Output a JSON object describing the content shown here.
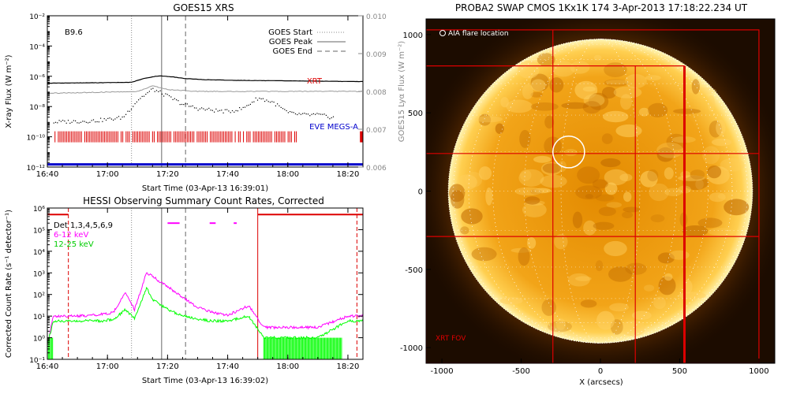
{
  "chart_data": [
    {
      "type": "line",
      "title": "GOES15 XRS",
      "xlabel": "Start Time (03-Apr-13 16:39:01)",
      "ylabel": "X-ray Flux (W m⁻²)",
      "ylabel_right": "GOES15 Lyα Flux (W m⁻²)",
      "x_ticks": [
        "16:40",
        "17:00",
        "17:20",
        "17:40",
        "18:00",
        "18:20"
      ],
      "x_range": [
        "16:40",
        "18:25"
      ],
      "y_scale": "log",
      "y_range": [
        1e-12,
        0.01
      ],
      "y_ticks": [
        "10⁻¹²",
        "10⁻¹⁰",
        "10⁻⁸",
        "10⁻⁶",
        "10⁻⁴",
        "10⁻²"
      ],
      "y_right_range": [
        0.006,
        0.01
      ],
      "y_right_ticks": [
        "0.006",
        "0.007",
        "0.008",
        "0.009",
        "0.010"
      ],
      "class_label": "B9.6",
      "legend": [
        "GOES Start",
        "GOES Peak",
        "GOES End"
      ],
      "annotations": [
        "XRT",
        "EVE MEGS-A"
      ],
      "goes_start": "17:08",
      "goes_peak": "17:18",
      "goes_end": "17:26",
      "series": [
        {
          "key": "long",
          "x": [
            "16:40",
            "17:00",
            "17:08",
            "17:12",
            "17:16",
            "17:18",
            "17:22",
            "17:26",
            "17:32",
            "17:40",
            "17:50",
            "18:00",
            "18:10",
            "18:20",
            "18:25"
          ],
          "values": [
            3.5e-07,
            3.8e-07,
            4e-07,
            7e-07,
            1e-06,
            1.05e-06,
            9e-07,
            7e-07,
            6e-07,
            5.5e-07,
            5.2e-07,
            5e-07,
            4.8e-07,
            4.5e-07,
            4.5e-07
          ]
        },
        {
          "key": "lya",
          "x": [
            "16:40",
            "17:10",
            "17:15",
            "17:20",
            "17:30",
            "18:00",
            "18:25"
          ],
          "values": [
            0.00795,
            0.008,
            0.00815,
            0.00805,
            0.008,
            0.008,
            0.008
          ]
        },
        {
          "key": "short",
          "x": [
            "16:42",
            "16:48",
            "16:55",
            "17:00",
            "17:05",
            "17:10",
            "17:15",
            "17:20",
            "17:25",
            "17:30",
            "17:35",
            "17:40",
            "17:45",
            "17:50",
            "17:55",
            "18:00",
            "18:05",
            "18:10",
            "18:15"
          ],
          "values": [
            1e-09,
            1.1e-09,
            1.2e-09,
            1.5e-09,
            2e-09,
            3e-08,
            1.5e-07,
            5e-08,
            1.5e-08,
            8e-09,
            6e-09,
            5e-09,
            8e-09,
            4e-08,
            2e-08,
            4e-09,
            3e-09,
            3e-09,
            2e-09
          ]
        }
      ],
      "xrt_bar": {
        "start": "16:42",
        "end": "18:03",
        "level": 1e-10
      },
      "eve_level": 1.5e-12
    },
    {
      "type": "line",
      "title": "HESSI Observing Summary Count Rates, Corrected",
      "xlabel": "Start Time (03-Apr-13 16:39:02)",
      "ylabel": "Corrected Count Rate (s⁻¹ detector⁻¹)",
      "x_ticks": [
        "16:40",
        "17:00",
        "17:20",
        "17:40",
        "18:00",
        "18:20"
      ],
      "x_range": [
        "16:40",
        "18:25"
      ],
      "y_scale": "log",
      "y_range": [
        0.1,
        1000000.0
      ],
      "y_ticks": [
        "10⁻¹",
        "10⁰",
        "10¹",
        "10²",
        "10³",
        "10⁴",
        "10⁵",
        "10⁶"
      ],
      "legend_title": "Det 1,3,4,5,6,9",
      "series": [
        {
          "name": "6-12 keV",
          "color": "#ff00ff",
          "x": [
            "16:40",
            "16:42",
            "16:50",
            "16:58",
            "17:02",
            "17:06",
            "17:09",
            "17:13",
            "17:15",
            "17:18",
            "17:22",
            "17:26",
            "17:30",
            "17:35",
            "17:40",
            "17:47",
            "17:52",
            "17:56",
            "18:00",
            "18:10",
            "18:20",
            "18:25"
          ],
          "values": [
            0.5,
            10,
            10,
            12,
            15,
            120,
            20,
            1000,
            700,
            350,
            150,
            60,
            25,
            15,
            11,
            30,
            3,
            3,
            3,
            3,
            10,
            10
          ]
        },
        {
          "name": "12-25 keV",
          "color": "#00ff00",
          "x": [
            "16:40",
            "16:42",
            "16:50",
            "16:58",
            "17:02",
            "17:06",
            "17:09",
            "17:13",
            "17:15",
            "17:18",
            "17:22",
            "17:26",
            "17:30",
            "17:35",
            "17:40",
            "17:47",
            "17:52",
            "17:56",
            "18:00",
            "18:10",
            "18:20",
            "18:25"
          ],
          "values": [
            0.5,
            6,
            6,
            6,
            7,
            20,
            8,
            200,
            60,
            30,
            15,
            10,
            7,
            6,
            6,
            10,
            1,
            1,
            1,
            1,
            6,
            6
          ]
        }
      ],
      "goes_start": "17:08",
      "goes_peak": "17:18",
      "goes_end": "17:26",
      "night_marks": [
        "16:47",
        "18:23"
      ],
      "saa_line": "17:50"
    },
    {
      "type": "heatmap",
      "title": "PROBA2 SWAP CMOS 1Kx1K 174   3-Apr-2013 17:18:22.234 UT",
      "xlabel": "X (arcsecs)",
      "x_range": [
        -1100,
        1100
      ],
      "y_range": [
        -1100,
        1100
      ],
      "x_ticks": [
        "-1000",
        "-500",
        "0",
        "500",
        "1000"
      ],
      "y_ticks": [
        "-1000",
        "-500",
        "0",
        "500",
        "1000"
      ],
      "labels": {
        "aia": "AIA flare location",
        "xrt": "XRT FOV"
      },
      "aia_flare": {
        "x": -200,
        "y": 250,
        "r": 100
      },
      "solar_radius": 960,
      "xrt_fov": {
        "x0": -1100,
        "x1": 1000,
        "y0": -1100,
        "y1": 1030
      },
      "grid_x": [
        -300,
        220,
        530
      ],
      "grid_y": [
        800,
        240,
        -290
      ]
    }
  ]
}
